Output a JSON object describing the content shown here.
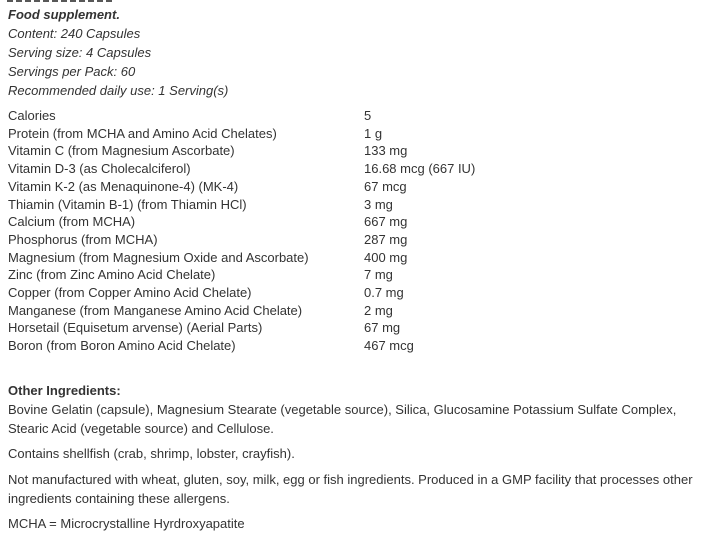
{
  "meta": {
    "background_color": "#ffffff",
    "text_color": "#333333"
  },
  "header": {
    "title": "Food supplement.",
    "lines": [
      "Content: 240 Capsules",
      "Serving size: 4 Capsules",
      "Servings per Pack: 60",
      "Recommended daily use: 1 Serving(s)"
    ]
  },
  "nutrients": {
    "rows": [
      {
        "label": "Calories",
        "value": "5"
      },
      {
        "label": "Protein (from MCHA and Amino Acid Chelates)",
        "value": "1 g"
      },
      {
        "label": "Vitamin C (from Magnesium Ascorbate)",
        "value": "133 mg"
      },
      {
        "label": "Vitamin D-3 (as Cholecalciferol)",
        "value": "16.68 mcg (667 IU)"
      },
      {
        "label": "Vitamin K-2 (as Menaquinone-4) (MK-4)",
        "value": "67 mcg"
      },
      {
        "label": "Thiamin (Vitamin B-1) (from Thiamin HCl)",
        "value": "3 mg"
      },
      {
        "label": "Calcium (from MCHA)",
        "value": "667 mg"
      },
      {
        "label": "Phosphorus (from MCHA)",
        "value": "287 mg"
      },
      {
        "label": "Magnesium (from Magnesium Oxide and Ascorbate)",
        "value": "400 mg"
      },
      {
        "label": "Zinc (from Zinc Amino Acid Chelate)",
        "value": "7 mg"
      },
      {
        "label": "Copper (from Copper Amino Acid Chelate)",
        "value": "0.7 mg"
      },
      {
        "label": "Manganese (from Manganese Amino Acid Chelate)",
        "value": "2 mg"
      },
      {
        "label": "Horsetail (Equisetum arvense) (Aerial Parts)",
        "value": "67 mg"
      },
      {
        "label": "Boron (from Boron Amino Acid Chelate)",
        "value": "467 mcg"
      }
    ]
  },
  "sections": {
    "other_ingredients_heading": "Other Ingredients:",
    "other_ingredients_text": "Bovine Gelatin (capsule), Magnesium Stearate (vegetable source), Silica, Glucosamine Potassium Sulfate Complex, Stearic Acid (vegetable source) and Cellulose.",
    "allergen_contains": "Contains shellfish (crab, shrimp, lobster, crayfish).",
    "allergen_notice": "Not manufactured with wheat, gluten, soy, milk, egg or fish ingredients. Produced in a GMP facility that processes other ingredients containing these allergens.",
    "abbreviation_note": "MCHA = Microcrystalline Hyrdroxyapatite"
  }
}
